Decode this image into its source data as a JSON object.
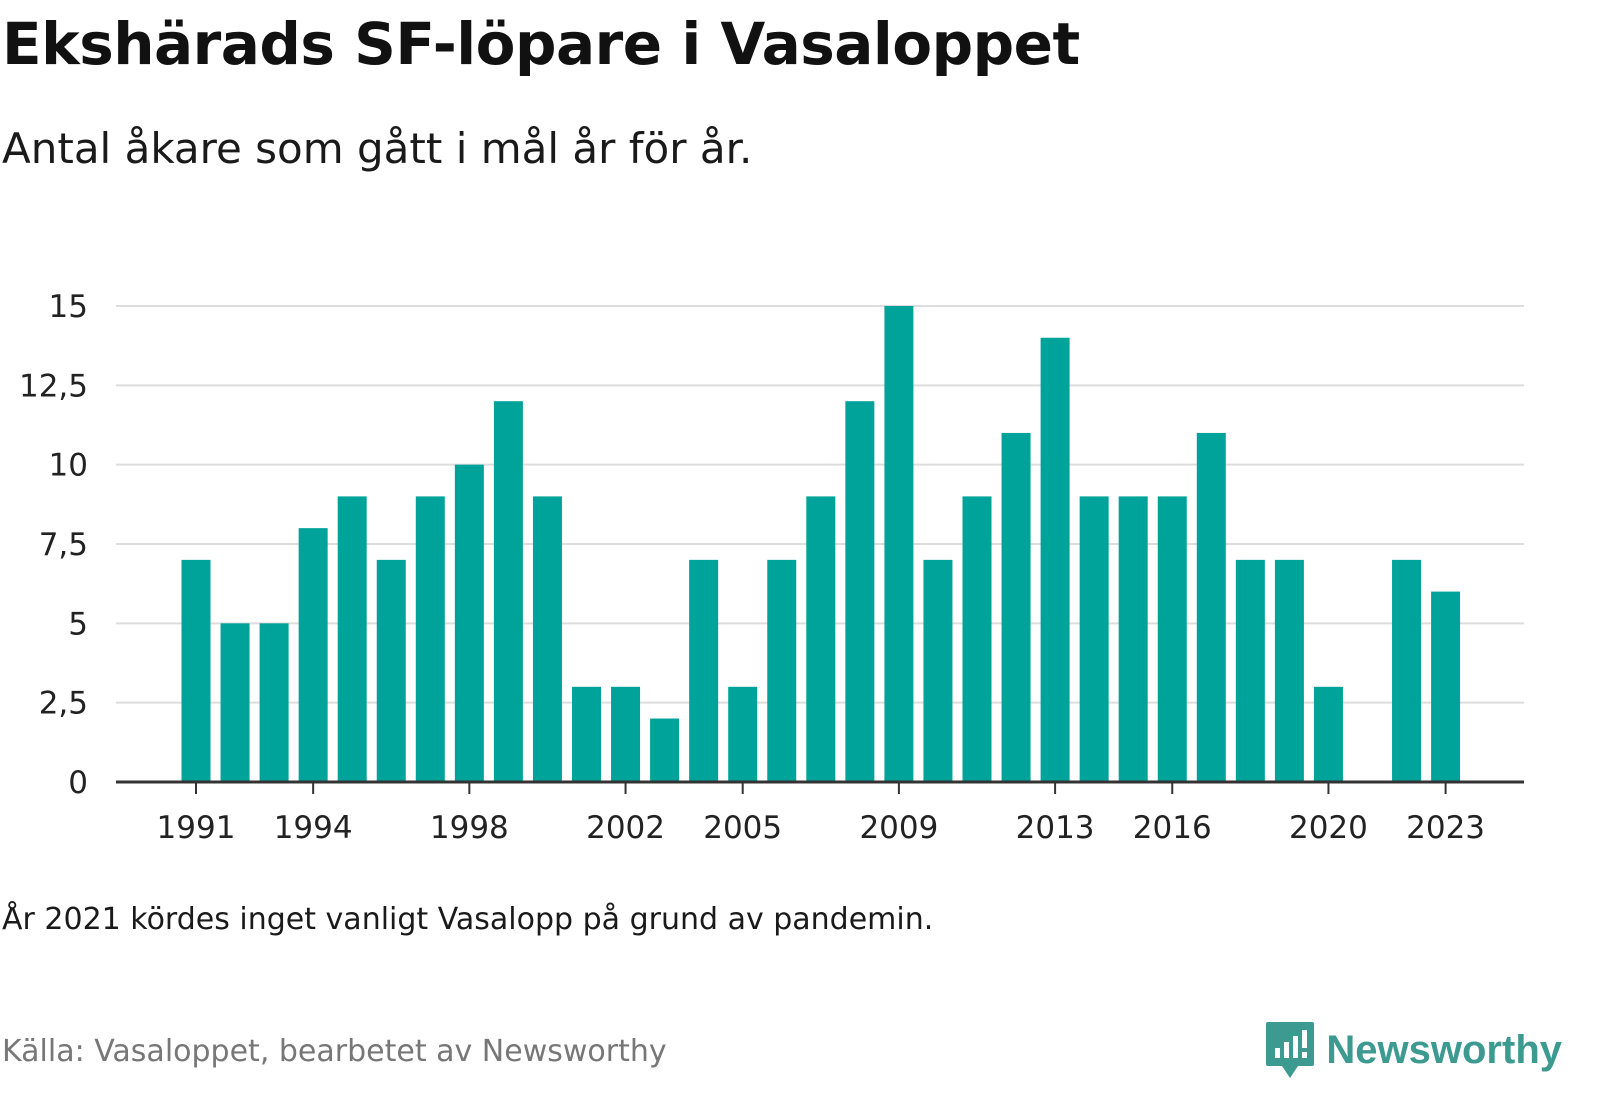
{
  "colors": {
    "bar": "#00a39a",
    "grid": "#dddddd",
    "axis": "#333333",
    "brand": "#3d9a91",
    "source": "#777777"
  },
  "chart_data": {
    "type": "bar",
    "title": "Ekshärads SF-löpare i Vasaloppet",
    "subtitle": "Antal åkare som gått i mål år för år.",
    "xlabel": "",
    "ylabel": "",
    "ylim": [
      0,
      15
    ],
    "grid": true,
    "yticks": [
      0,
      2.5,
      5,
      7.5,
      10,
      12.5,
      15
    ],
    "ytick_labels": [
      "0",
      "2,5",
      "5",
      "7,5",
      "10",
      "12,5",
      "15"
    ],
    "xtick_labels": [
      "1991",
      "1994",
      "1998",
      "2002",
      "2005",
      "2009",
      "2013",
      "2016",
      "2020",
      "2023"
    ],
    "categories": [
      1991,
      1992,
      1993,
      1994,
      1995,
      1996,
      1997,
      1998,
      1999,
      2000,
      2001,
      2002,
      2003,
      2004,
      2005,
      2006,
      2007,
      2008,
      2009,
      2010,
      2011,
      2012,
      2013,
      2014,
      2015,
      2016,
      2017,
      2018,
      2019,
      2020,
      2021,
      2022,
      2023
    ],
    "values": [
      7,
      5,
      5,
      8,
      9,
      7,
      9,
      10,
      12,
      9,
      3,
      3,
      2,
      7,
      3,
      7,
      9,
      12,
      15,
      7,
      9,
      11,
      14,
      9,
      9,
      9,
      11,
      7,
      7,
      3,
      null,
      7,
      6
    ]
  },
  "note": "År 2021 kördes inget vanligt Vasalopp på grund av pandemin.",
  "source": "Källa: Vasaloppet, bearbetet av Newsworthy",
  "brand": {
    "name": "Newsworthy",
    "icon": "newsworthy-logo-icon"
  }
}
